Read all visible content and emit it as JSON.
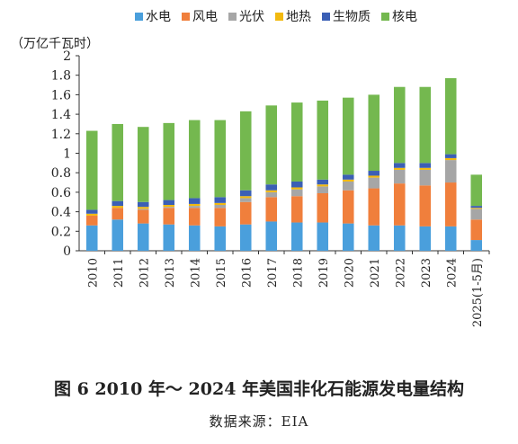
{
  "figure": {
    "caption": "图 6   2010 年～ 2024 年美国非化石能源发电量结构",
    "source": "数据来源：EIA"
  },
  "chart_data": {
    "type": "bar",
    "stacked": true,
    "ylabel": "（万亿千瓦时）",
    "ylim": [
      0,
      2
    ],
    "yticks": [
      "0",
      "0.2",
      "0.4",
      "0.6",
      "0.8",
      "1",
      "1.2",
      "1.4",
      "1.6",
      "1.8",
      "2"
    ],
    "legend_position": "top",
    "grid": false,
    "categories": [
      "2010",
      "2011",
      "2012",
      "2013",
      "2014",
      "2015",
      "2016",
      "2017",
      "2018",
      "2019",
      "2020",
      "2021",
      "2022",
      "2023",
      "2024",
      "2025(1-5月)"
    ],
    "series": [
      {
        "name": "水电",
        "color": "#4a9fdc",
        "values": [
          0.26,
          0.32,
          0.28,
          0.27,
          0.26,
          0.25,
          0.27,
          0.3,
          0.29,
          0.29,
          0.28,
          0.26,
          0.26,
          0.25,
          0.25,
          0.11
        ]
      },
      {
        "name": "风电",
        "color": "#f07f3c",
        "values": [
          0.1,
          0.12,
          0.14,
          0.17,
          0.18,
          0.19,
          0.23,
          0.25,
          0.27,
          0.3,
          0.34,
          0.38,
          0.43,
          0.42,
          0.45,
          0.21
        ]
      },
      {
        "name": "光伏",
        "color": "#a6a6a6",
        "values": [
          0.0,
          0.0,
          0.01,
          0.01,
          0.02,
          0.03,
          0.04,
          0.05,
          0.07,
          0.07,
          0.09,
          0.11,
          0.14,
          0.16,
          0.23,
          0.11
        ]
      },
      {
        "name": "地热",
        "color": "#f2b90f",
        "values": [
          0.02,
          0.02,
          0.02,
          0.02,
          0.02,
          0.02,
          0.02,
          0.02,
          0.02,
          0.02,
          0.02,
          0.02,
          0.02,
          0.02,
          0.02,
          0.01
        ]
      },
      {
        "name": "生物质",
        "color": "#3b5fb5",
        "values": [
          0.04,
          0.05,
          0.05,
          0.05,
          0.06,
          0.06,
          0.06,
          0.06,
          0.06,
          0.05,
          0.05,
          0.05,
          0.05,
          0.05,
          0.04,
          0.02
        ]
      },
      {
        "name": "核电",
        "color": "#74b84f",
        "values": [
          0.81,
          0.79,
          0.77,
          0.79,
          0.8,
          0.79,
          0.81,
          0.81,
          0.81,
          0.81,
          0.79,
          0.78,
          0.78,
          0.78,
          0.78,
          0.32
        ]
      }
    ]
  }
}
